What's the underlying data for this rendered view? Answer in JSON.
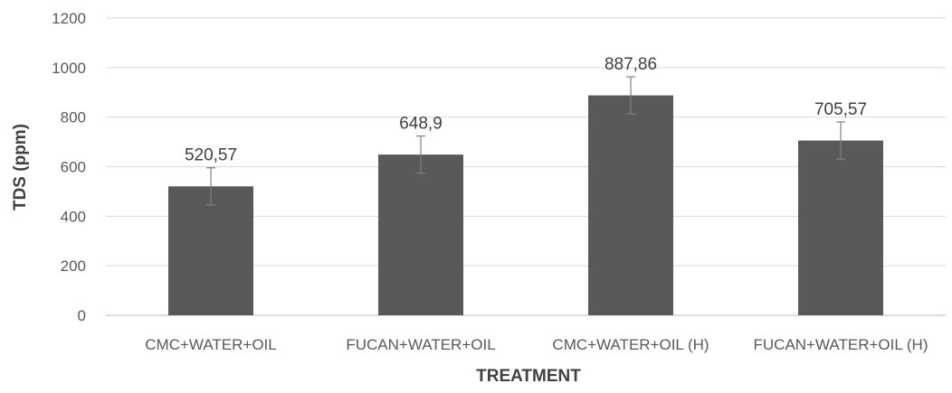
{
  "chart_data": {
    "type": "bar",
    "title": "",
    "xlabel": "TREATMENT",
    "ylabel": "TDS (ppm)",
    "categories": [
      "CMC+WATER+OIL",
      "FUCAN+WATER+OIL",
      "CMC+WATER+OIL (H)",
      "FUCAN+WATER+OIL (H)"
    ],
    "values": [
      520.57,
      648.9,
      887.86,
      705.57
    ],
    "data_labels": [
      "520,57",
      "648,9",
      "887,86",
      "705,57"
    ],
    "error": [
      75,
      75,
      75,
      75
    ],
    "ylim": [
      0,
      1200
    ],
    "yticks": [
      0,
      200,
      400,
      600,
      800,
      1000,
      1200
    ],
    "grid": true,
    "legend": "none",
    "bar_color": "#595959",
    "error_color": "#808080",
    "grid_color": "#d9d9d9"
  }
}
